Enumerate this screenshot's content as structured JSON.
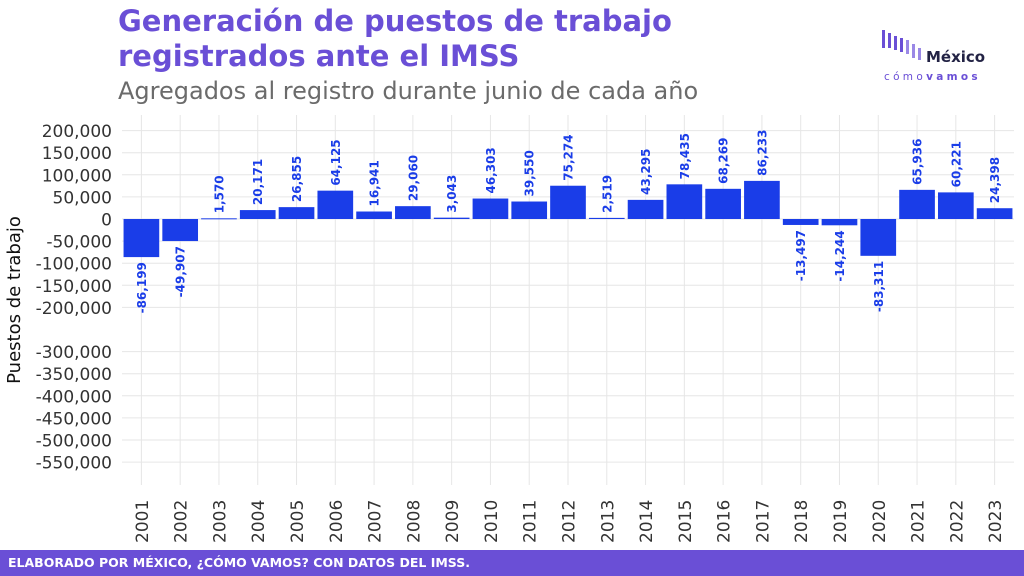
{
  "header": {
    "title": "Generación de puestos de trabajo registrados ante el IMSS",
    "subtitle": "Agregados al registro durante junio de cada año"
  },
  "logo": {
    "word": "México",
    "tagline_a": "cómo",
    "tagline_b": "vamos"
  },
  "footer": {
    "text": "ELABORADO POR MÉXICO, ¿CÓMO VAMOS? CON DATOS DEL IMSS."
  },
  "colors": {
    "bar": "#1a3de8",
    "label": "#1a3de8",
    "accent": "#6a4fd6",
    "grid": "#e6e6e6"
  },
  "chart_data": {
    "type": "bar",
    "title": "Generación de puestos de trabajo registrados ante el IMSS",
    "subtitle": "Agregados al registro durante junio de cada año",
    "xlabel": "",
    "ylabel": "Puestos de trabajo",
    "categories": [
      "2001",
      "2002",
      "2003",
      "2004",
      "2005",
      "2006",
      "2007",
      "2008",
      "2009",
      "2010",
      "2011",
      "2012",
      "2013",
      "2014",
      "2015",
      "2016",
      "2017",
      "2018",
      "2019",
      "2020",
      "2021",
      "2022",
      "2023"
    ],
    "values": [
      -86199,
      -49907,
      1570,
      20171,
      26855,
      64125,
      16941,
      29060,
      3043,
      46303,
      39550,
      75274,
      2519,
      43295,
      78435,
      68269,
      86233,
      -13497,
      -14244,
      -83311,
      65936,
      60221,
      24398
    ],
    "value_labels": [
      "-86,199",
      "-49,907",
      "1,570",
      "20,171",
      "26,855",
      "64,125",
      "16,941",
      "29,060",
      "3,043",
      "46,303",
      "39,550",
      "75,274",
      "2,519",
      "43,295",
      "78,435",
      "68,269",
      "86,233",
      "-13,497",
      "-14,244",
      "-83,311",
      "65,936",
      "60,221",
      "24,398"
    ],
    "yticks": [
      200000,
      150000,
      100000,
      50000,
      0,
      -50000,
      -100000,
      -150000,
      -200000,
      -300000,
      -350000,
      -400000,
      -450000,
      -500000,
      -550000
    ],
    "ytick_labels": [
      "200,000",
      "150,000",
      "100,000",
      "50,000",
      "0",
      "-50,000",
      "-100,000",
      "-150,000",
      "-200,000",
      "-300,000",
      "-350,000",
      "-400,000",
      "-450,000",
      "-500,000",
      "-550,000"
    ],
    "ylim": [
      -550000,
      200000
    ],
    "grid": true,
    "legend": "none"
  }
}
